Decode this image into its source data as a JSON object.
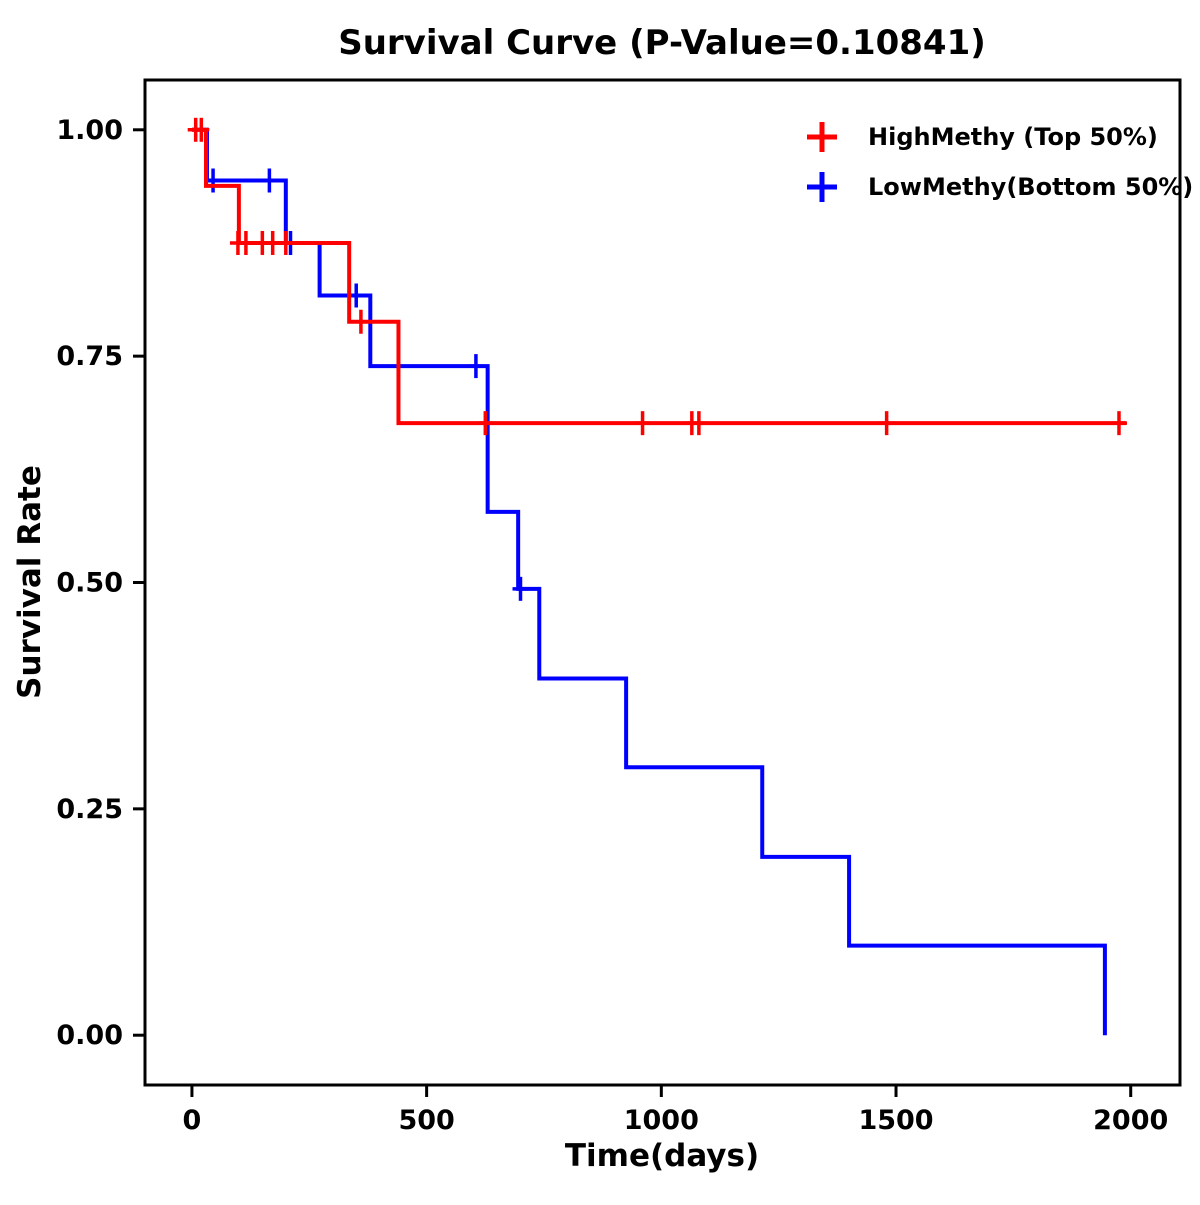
{
  "chart_data": {
    "type": "line",
    "subtype": "kaplan-meier-step-curve",
    "title": "Survival Curve (P-Value=0.10841)",
    "xlabel": "Time(days)",
    "ylabel": "Survival Rate",
    "xlim": [
      -100,
      2105
    ],
    "ylim": [
      -0.055,
      1.055
    ],
    "x_ticks": [
      0,
      500,
      1000,
      1500,
      2000
    ],
    "y_ticks": [
      0,
      0.25,
      0.5,
      0.75,
      1
    ],
    "grid": false,
    "legend_position": "top-right",
    "series": [
      {
        "name": "HighMethy (Top 50%)",
        "color": "#FF0000",
        "steps": [
          [
            0,
            1.0
          ],
          [
            30,
            0.938
          ],
          [
            100,
            0.875
          ],
          [
            335,
            0.788
          ],
          [
            440,
            0.676
          ],
          [
            1990,
            0.676
          ]
        ],
        "censor_marks": [
          [
            8,
            1.0
          ],
          [
            20,
            1.0
          ],
          [
            98,
            0.875
          ],
          [
            115,
            0.875
          ],
          [
            150,
            0.875
          ],
          [
            172,
            0.875
          ],
          [
            200,
            0.875
          ],
          [
            360,
            0.788
          ],
          [
            625,
            0.676
          ],
          [
            960,
            0.676
          ],
          [
            1065,
            0.676
          ],
          [
            1080,
            0.676
          ],
          [
            1480,
            0.676
          ],
          [
            1975,
            0.676
          ]
        ]
      },
      {
        "name": "LowMethy(Bottom 50%)",
        "color": "#0000FF",
        "steps": [
          [
            0,
            1.0
          ],
          [
            32,
            0.944
          ],
          [
            200,
            0.875
          ],
          [
            272,
            0.817
          ],
          [
            380,
            0.739
          ],
          [
            630,
            0.578
          ],
          [
            695,
            0.493
          ],
          [
            740,
            0.394
          ],
          [
            925,
            0.296
          ],
          [
            1215,
            0.197
          ],
          [
            1400,
            0.099
          ],
          [
            1945,
            0.0
          ]
        ],
        "censor_marks": [
          [
            45,
            0.944
          ],
          [
            165,
            0.944
          ],
          [
            210,
            0.875
          ],
          [
            350,
            0.817
          ],
          [
            605,
            0.739
          ],
          [
            700,
            0.493
          ]
        ]
      }
    ]
  }
}
